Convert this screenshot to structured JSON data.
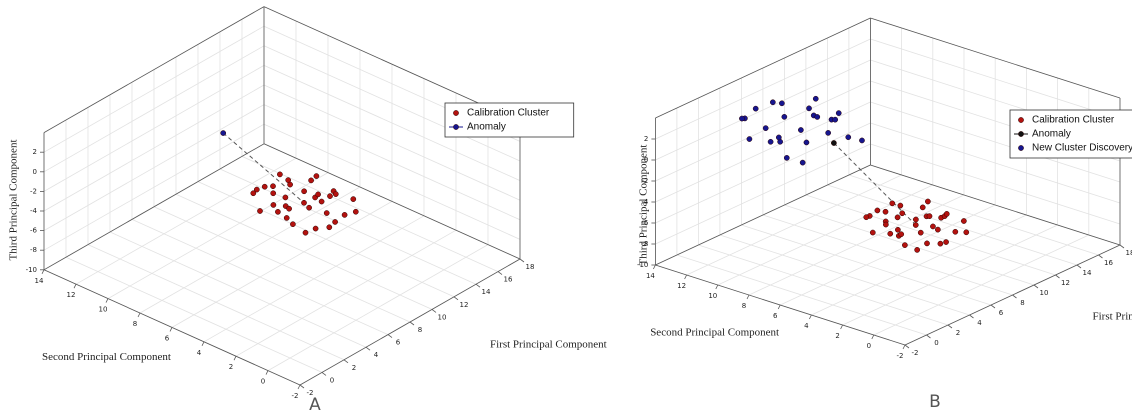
{
  "chart_data": [
    {
      "type": "scatter3d",
      "label": "A",
      "xlabel": "First Principal Component",
      "ylabel": "Second Principal Component",
      "zlabel": "Third Principal Component",
      "xlim": [
        -2,
        18
      ],
      "ylim": [
        -2,
        14
      ],
      "zlim": [
        -10,
        4
      ],
      "xticks": [
        -2,
        0,
        2,
        4,
        6,
        8,
        10,
        12,
        14,
        16,
        18
      ],
      "yticks": [
        -2,
        0,
        2,
        4,
        6,
        8,
        10,
        12,
        14
      ],
      "zticks": [
        -10,
        -8,
        -6,
        -4,
        -2,
        0,
        2
      ],
      "grid": true,
      "legend": "upper right",
      "series": [
        {
          "name": "Calibration Cluster",
          "color": "#b3120f",
          "x": [
            10,
            11.2,
            8.5,
            12.1,
            9.3,
            10.4,
            7.7,
            11.8,
            8.9,
            10.9,
            9.7,
            12.4,
            8.1,
            10.6,
            9.2,
            11.5,
            7.6,
            10.2,
            11,
            8.7,
            12,
            9.5,
            10.7,
            8.3,
            11.3,
            8,
            10.1,
            12.3,
            9.1,
            11.6,
            8.6,
            10.5,
            9.8,
            11.9,
            7.8
          ],
          "y": [
            6,
            5.2,
            6.6,
            7,
            4.1,
            8.2,
            5.5,
            4,
            7.7,
            6.3,
            5.1,
            5.8,
            4.6,
            7.4,
            8.4,
            7.9,
            7.1,
            3.6,
            4.7,
            5.8,
            6.6,
            6.8,
            5.6,
            8,
            8.4,
            3.9,
            7,
            4.5,
            3.8,
            6,
            6.2,
            4.4,
            7.8,
            7.3,
            6.4
          ],
          "z": [
            -5,
            -4.5,
            -5.4,
            -4.8,
            -4.2,
            -5.9,
            -4.7,
            -5.6,
            -3.9,
            -6.3,
            -3.6,
            -5.2,
            -5.8,
            -4.1,
            -4.9,
            -5.5,
            -5.1,
            -4.6,
            -3.8,
            -6.2,
            -4,
            -5.6,
            -4.3,
            -4.4,
            -4.7,
            -4.8,
            -6.4,
            -5,
            -5.3,
            -5.9,
            -3.7,
            -6.1,
            -4.5,
            -6,
            -4.1
          ]
        },
        {
          "name": "Anomaly",
          "color": "#16168f",
          "line": "dashed",
          "x": [
            6
          ],
          "y": [
            8.3
          ],
          "z": [
            3
          ]
        }
      ]
    },
    {
      "type": "scatter3d",
      "label": "B",
      "xlabel": "First Principal Component",
      "ylabel": "Second Principal Component",
      "zlabel": "Third Principal Component",
      "xlim": [
        -2,
        18
      ],
      "ylim": [
        -2,
        14
      ],
      "zlim": [
        -10,
        4
      ],
      "xticks": [
        -2,
        0,
        2,
        4,
        6,
        8,
        10,
        12,
        14,
        16,
        18
      ],
      "yticks": [
        -2,
        0,
        2,
        4,
        6,
        8,
        10,
        12,
        14
      ],
      "zticks": [
        -10,
        -8,
        -6,
        -4,
        -2,
        0,
        2
      ],
      "grid": true,
      "legend": "upper right",
      "series": [
        {
          "name": "Calibration Cluster",
          "color": "#b3120f",
          "x": [
            6.4,
            7.6,
            4.9,
            8.5,
            5.7,
            6.8,
            4.1,
            8.2,
            5.3,
            7.3,
            6.1,
            8.8,
            4.5,
            7,
            5.6,
            7.9,
            4,
            6.6,
            7.4,
            5.1,
            8.4,
            5.9,
            7.1,
            4.7,
            7.7,
            4.4,
            6.5,
            8.7,
            5.5,
            8,
            5,
            6.9,
            6.2,
            8.3,
            4.2
          ],
          "y": [
            3.1,
            2.3,
            3.7,
            4.1,
            1.2,
            5.3,
            2.6,
            1.1,
            4.8,
            3.4,
            2.2,
            2.9,
            1.7,
            4.5,
            5.5,
            5,
            4.2,
            0.7,
            1.8,
            2.9,
            3.7,
            3.9,
            2.7,
            5.1,
            5.5,
            1,
            4.1,
            1.6,
            0.9,
            3.1,
            3.3,
            1.5,
            4.9,
            4.4,
            3.5
          ],
          "z": [
            -5,
            -4.5,
            -5.4,
            -4.8,
            -4.2,
            -5.9,
            -4.7,
            -5.6,
            -3.9,
            -6.3,
            -3.6,
            -5.2,
            -5.8,
            -4.1,
            -4.9,
            -5.5,
            -5.1,
            -4.6,
            -3.8,
            -6.2,
            -4,
            -5.6,
            -4.3,
            -4.4,
            -4.7,
            -4.8,
            -6.4,
            -5,
            -5.3,
            -5.9,
            -3.7,
            -6.1,
            -4.5,
            -6,
            -4.1
          ]
        },
        {
          "name": "Anomaly",
          "color": "#111111",
          "line": "dashed",
          "x": [
            4.3
          ],
          "y": [
            6.9
          ],
          "z": [
            2
          ]
        },
        {
          "name": "New Cluster Discovery",
          "color": "#16168f",
          "x": [
            2.1,
            3.5,
            0.3,
            4.6,
            1.3,
            2.6,
            -0.7,
            4.3,
            0.8,
            3.2,
            1.7,
            5,
            -0.2,
            2.8,
            1.1,
            3.9,
            -0.8,
            2.3,
            3.3,
            0.5,
            4.5,
            1.5,
            2.9,
            0.1,
            3.7
          ],
          "y": [
            7.5,
            6.5,
            8.2,
            8.7,
            5.2,
            10.1,
            6.9,
            5.1,
            9.5,
            7.9,
            6.4,
            7.3,
            5.8,
            9.2,
            10.4,
            9.8,
            8.8,
            4.6,
            5.9,
            7.3,
            8.2,
            8.5,
            7,
            9.9,
            10.4
          ],
          "z": [
            4,
            4.8,
            3.4,
            4.3,
            5.2,
            2.7,
            4.5,
            3.1,
            5.7,
            2.1,
            6.1,
            3.7,
            2.8,
            5.4,
            4.2,
            3.3,
            3.9,
            4.6,
            5.8,
            2.2,
            5.5,
            3.1,
            5.1,
            4.9,
            4.5
          ]
        }
      ]
    }
  ]
}
